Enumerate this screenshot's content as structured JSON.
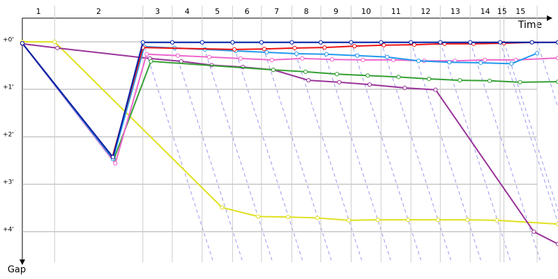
{
  "chart_data": {
    "type": "line",
    "x_label": "Time",
    "y_label": "Gap",
    "categories": [
      "1",
      "2",
      "3",
      "4",
      "5",
      "6",
      "7",
      "8",
      "9",
      "10",
      "11",
      "12",
      "13",
      "14",
      "15",
      "15"
    ],
    "xticks": [
      0,
      0.68,
      2.54,
      3.16,
      3.79,
      4.43,
      5.04,
      5.68,
      6.29,
      6.93,
      7.56,
      8.19,
      8.81,
      9.44,
      10.07,
      10.15,
      10.85
    ],
    "xlim": [
      0,
      11.29
    ],
    "ylim": [
      -0.5,
      4.85
    ],
    "yticks": [
      {
        "value": 0,
        "label": "+0'"
      },
      {
        "value": 1,
        "label": "+1'"
      },
      {
        "value": 2,
        "label": "+2'"
      },
      {
        "value": 3,
        "label": "+3'"
      },
      {
        "value": 4,
        "label": "+4'"
      }
    ],
    "grid": true,
    "series": [
      {
        "color": "#e0e020",
        "x": [
          0,
          0.68,
          4.21,
          4.97,
          5.6,
          6.22,
          6.88,
          7.49,
          8.13,
          8.76,
          9.38,
          10.0,
          11.29
        ],
        "values": [
          0,
          0,
          3.49,
          3.68,
          3.69,
          3.71,
          3.76,
          3.75,
          3.75,
          3.75,
          3.75,
          3.76,
          3.84
        ]
      },
      {
        "color": "#993399",
        "x": [
          0,
          0.74,
          2.69,
          3.35,
          3.99,
          4.65,
          5.29,
          6.03,
          6.68,
          7.32,
          8.06,
          8.71,
          10.78,
          11.29
        ],
        "values": [
          0.04,
          0.13,
          0.35,
          0.41,
          0.49,
          0.53,
          0.59,
          0.81,
          0.85,
          0.9,
          0.97,
          1.01,
          4.0,
          4.26
        ]
      },
      {
        "color": "#33a033",
        "x": [
          0,
          1.93,
          2.71,
          5.29,
          5.97,
          6.63,
          7.28,
          7.93,
          8.57,
          9.22,
          9.85,
          10.49,
          11.29
        ],
        "values": [
          0.03,
          2.47,
          0.41,
          0.59,
          0.63,
          0.68,
          0.71,
          0.74,
          0.78,
          0.81,
          0.82,
          0.85,
          0.84
        ]
      },
      {
        "color": "#ee66cc",
        "x": [
          0,
          1.96,
          2.62,
          3.28,
          3.94,
          4.6,
          5.26,
          5.9,
          6.53,
          7.18,
          7.82,
          8.47,
          9.12,
          9.75,
          10.4,
          11.29
        ],
        "values": [
          0.03,
          2.56,
          0.26,
          0.29,
          0.32,
          0.35,
          0.38,
          0.35,
          0.37,
          0.38,
          0.38,
          0.4,
          0.4,
          0.38,
          0.38,
          0.34
        ]
      },
      {
        "color": "#2299ee",
        "x": [
          0,
          1.91,
          2.57,
          3.21,
          3.85,
          4.5,
          5.15,
          5.78,
          6.41,
          7.06,
          7.69,
          8.35,
          9.0,
          9.66,
          10.31,
          10.85
        ],
        "values": [
          0.03,
          2.47,
          0.1,
          0.13,
          0.16,
          0.19,
          0.22,
          0.25,
          0.26,
          0.29,
          0.32,
          0.4,
          0.43,
          0.44,
          0.46,
          0.24
        ]
      },
      {
        "color": "#ee1111",
        "x": [
          0,
          1.9,
          2.54,
          4.47,
          5.1,
          5.74,
          6.37,
          7.0,
          7.62,
          8.26,
          8.9,
          9.51,
          10.15,
          10.74,
          11.29
        ],
        "values": [
          0.03,
          2.42,
          0.12,
          0.16,
          0.15,
          0.13,
          0.12,
          0.09,
          0.07,
          0.06,
          0.04,
          0.04,
          0.03,
          0.01,
          0.01
        ]
      },
      {
        "color": "#0022aa",
        "x": [
          0,
          1.91,
          2.54,
          3.16,
          3.79,
          4.43,
          5.04,
          5.68,
          6.29,
          6.93,
          7.56,
          8.19,
          8.81,
          9.44,
          10.07,
          10.74,
          11.29
        ],
        "values": [
          0.03,
          2.43,
          0.01,
          0.01,
          0.01,
          0.01,
          0.01,
          0.01,
          0.01,
          0.01,
          0.01,
          0.01,
          0.01,
          0.01,
          0.01,
          0.01,
          0.01
        ]
      }
    ]
  }
}
